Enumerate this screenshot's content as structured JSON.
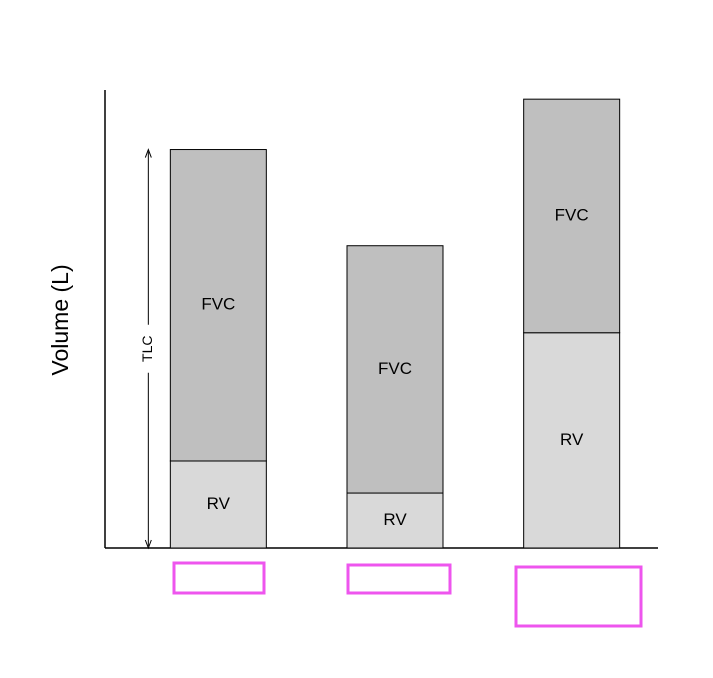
{
  "chart_data": {
    "type": "bar",
    "stacked": true,
    "y_label": "Volume (L)",
    "categories": [
      null,
      null,
      null
    ],
    "series": [
      {
        "name": "RV",
        "color": "#d9d9d9",
        "values": [
          1.9,
          1.2,
          4.7
        ]
      },
      {
        "name": "FVC",
        "color": "#bfbfbf",
        "values": [
          6.8,
          5.4,
          5.1
        ]
      }
    ],
    "annotation": "TLC",
    "ylim": [
      0,
      10
    ]
  }
}
